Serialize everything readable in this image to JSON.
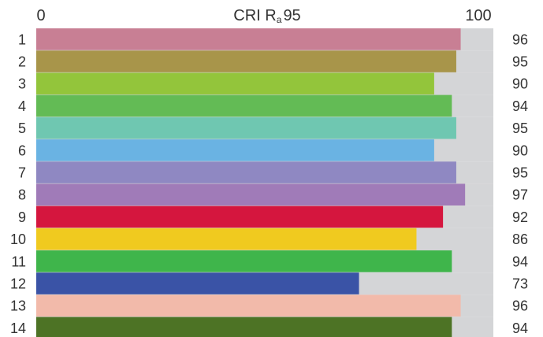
{
  "chart_data": {
    "type": "bar",
    "orientation": "horizontal",
    "title": "CRI Ra 95",
    "title_parts": {
      "main": "CRI R",
      "subscript": "a",
      "value": "95"
    },
    "xlim": [
      0,
      100
    ],
    "x_tick_labels": [
      "0",
      "100"
    ],
    "categories": [
      "1",
      "2",
      "3",
      "4",
      "5",
      "6",
      "7",
      "8",
      "9",
      "10",
      "11",
      "12",
      "13",
      "14"
    ],
    "values": [
      96,
      95,
      90,
      94,
      95,
      90,
      95,
      97,
      92,
      86,
      94,
      73,
      96,
      94
    ],
    "colors": [
      "#c87f94",
      "#a8954a",
      "#93c53b",
      "#63bb55",
      "#6fc7b1",
      "#6ab3e3",
      "#8f88c2",
      "#a07bb8",
      "#d5163e",
      "#f0ca1f",
      "#3fb54b",
      "#3a53a6",
      "#f2baaa",
      "#4d7325"
    ],
    "track_color": "#d4d5d7",
    "grid": false,
    "legend": "none"
  }
}
